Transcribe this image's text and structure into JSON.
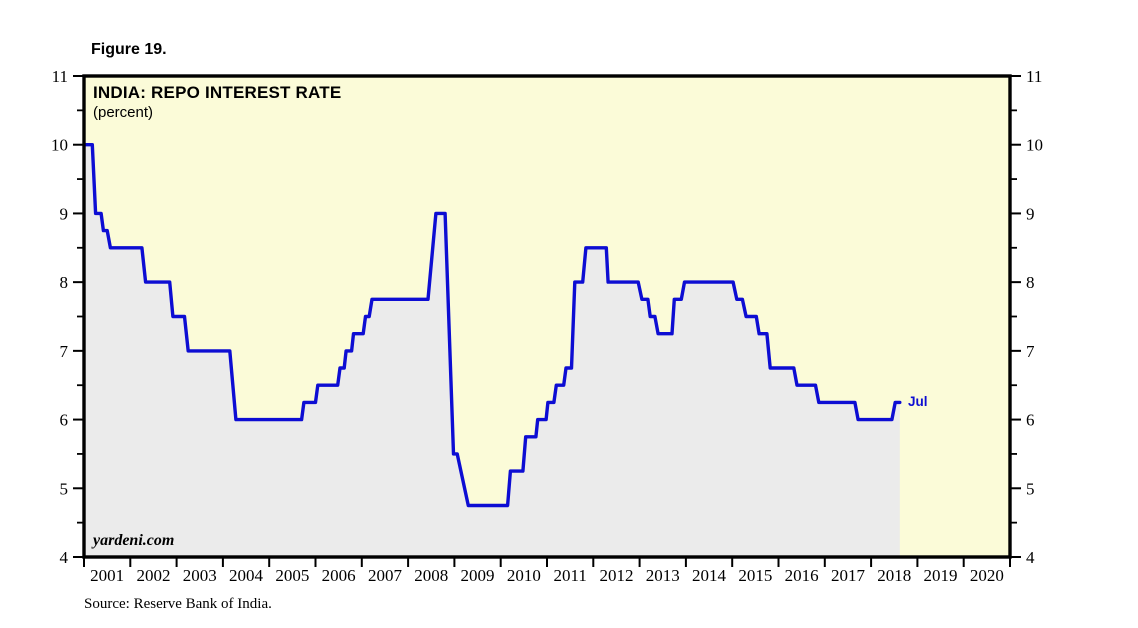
{
  "figure": {
    "label": "Figure 19."
  },
  "chart_data": {
    "type": "line",
    "step": true,
    "figure_label": "Figure 19.",
    "title": "INDIA: REPO INTEREST RATE",
    "subtitle": "(percent)",
    "watermark": "yardeni.com",
    "source": "Source: Reserve Bank of India.",
    "last_point_label": "Jul",
    "xlabel": "",
    "ylabel": "",
    "xlim": [
      2001,
      2021
    ],
    "ylim": [
      4,
      11
    ],
    "y_ticks": [
      4,
      5,
      6,
      7,
      8,
      9,
      10,
      11
    ],
    "y_minor_ticks": [
      4.5,
      5.5,
      6.5,
      7.5,
      8.5,
      9.5,
      10.5
    ],
    "x_tick_labels": [
      "2001",
      "2002",
      "2003",
      "2004",
      "2005",
      "2006",
      "2007",
      "2008",
      "2009",
      "2010",
      "2011",
      "2012",
      "2013",
      "2014",
      "2015",
      "2016",
      "2017",
      "2018",
      "2019",
      "2020"
    ],
    "grid": "off",
    "legend": "none",
    "series": [
      {
        "name": "India repo interest rate (percent)",
        "unit": "percent",
        "last_value": 6.25,
        "steps": [
          {
            "from": 2001.0,
            "to": 2001.18,
            "v": 10.0
          },
          {
            "from": 2001.25,
            "to": 2001.37,
            "v": 9.0
          },
          {
            "from": 2001.42,
            "to": 2001.5,
            "v": 8.75
          },
          {
            "from": 2001.57,
            "to": 2002.25,
            "v": 8.5
          },
          {
            "from": 2002.33,
            "to": 2002.85,
            "v": 8.0
          },
          {
            "from": 2002.92,
            "to": 2003.17,
            "v": 7.5
          },
          {
            "from": 2003.25,
            "to": 2004.15,
            "v": 7.0
          },
          {
            "from": 2004.28,
            "to": 2005.7,
            "v": 6.0
          },
          {
            "from": 2005.75,
            "to": 2006.0,
            "v": 6.25
          },
          {
            "from": 2006.05,
            "to": 2006.48,
            "v": 6.5
          },
          {
            "from": 2006.53,
            "to": 2006.62,
            "v": 6.75
          },
          {
            "from": 2006.66,
            "to": 2006.78,
            "v": 7.0
          },
          {
            "from": 2006.82,
            "to": 2007.03,
            "v": 7.25
          },
          {
            "from": 2007.08,
            "to": 2007.16,
            "v": 7.5
          },
          {
            "from": 2007.22,
            "to": 2008.43,
            "v": 7.75
          },
          {
            "from": 2008.6,
            "to": 2008.8,
            "v": 9.0
          },
          {
            "from": 2008.98,
            "to": 2009.06,
            "v": 5.5
          },
          {
            "from": 2009.3,
            "to": 2010.15,
            "v": 4.75
          },
          {
            "from": 2010.21,
            "to": 2010.48,
            "v": 5.25
          },
          {
            "from": 2010.54,
            "to": 2010.76,
            "v": 5.75
          },
          {
            "from": 2010.8,
            "to": 2010.98,
            "v": 6.0
          },
          {
            "from": 2011.02,
            "to": 2011.15,
            "v": 6.25
          },
          {
            "from": 2011.2,
            "to": 2011.36,
            "v": 6.5
          },
          {
            "from": 2011.41,
            "to": 2011.53,
            "v": 6.75
          },
          {
            "from": 2011.6,
            "to": 2011.77,
            "v": 8.0
          },
          {
            "from": 2011.84,
            "to": 2012.28,
            "v": 8.5
          },
          {
            "from": 2012.32,
            "to": 2012.97,
            "v": 8.0
          },
          {
            "from": 2013.05,
            "to": 2013.18,
            "v": 7.75
          },
          {
            "from": 2013.23,
            "to": 2013.33,
            "v": 7.5
          },
          {
            "from": 2013.4,
            "to": 2013.7,
            "v": 7.25
          },
          {
            "from": 2013.75,
            "to": 2013.9,
            "v": 7.75
          },
          {
            "from": 2013.97,
            "to": 2015.02,
            "v": 8.0
          },
          {
            "from": 2015.1,
            "to": 2015.22,
            "v": 7.75
          },
          {
            "from": 2015.3,
            "to": 2015.52,
            "v": 7.5
          },
          {
            "from": 2015.58,
            "to": 2015.75,
            "v": 7.25
          },
          {
            "from": 2015.82,
            "to": 2016.33,
            "v": 6.75
          },
          {
            "from": 2016.4,
            "to": 2016.8,
            "v": 6.5
          },
          {
            "from": 2016.87,
            "to": 2017.65,
            "v": 6.25
          },
          {
            "from": 2017.72,
            "to": 2018.45,
            "v": 6.0
          },
          {
            "from": 2018.52,
            "to": 2018.62,
            "v": 6.25
          }
        ]
      }
    ],
    "colors": {
      "page_bg": "#ffffff",
      "plot_bg": "#fbfbd8",
      "area_fill": "#ebebeb",
      "line": "#0d0dd3",
      "axis": "#000000",
      "text": "#000000"
    }
  }
}
